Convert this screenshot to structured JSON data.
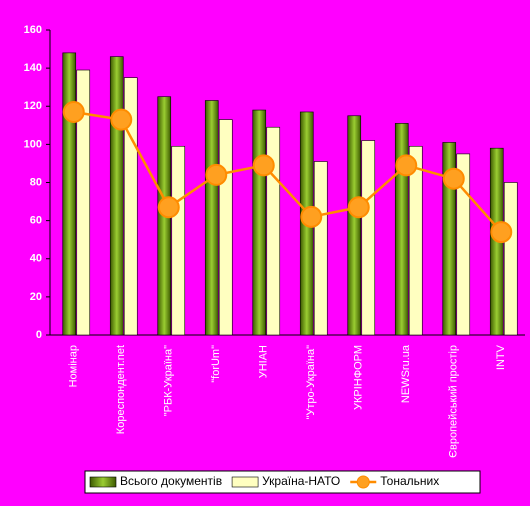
{
  "chart_data": {
    "type": "bar",
    "categories": [
      "Номінар",
      "Кореспондент.net",
      "\"РБК-Україна\"",
      "\"forUm\"",
      "УНІАН",
      "\"Утро-Україна\"",
      "УКРІНФОРМ",
      "NEWSru.ua",
      "Європейський простір",
      "INTV"
    ],
    "series": [
      {
        "name": "Всього документів",
        "color": "#6b8e1a",
        "type": "bar",
        "values": [
          148,
          146,
          125,
          123,
          118,
          117,
          115,
          111,
          101,
          98
        ]
      },
      {
        "name": "Україна-НАТО",
        "color": "#ffffc0",
        "type": "bar",
        "values": [
          139,
          135,
          99,
          113,
          109,
          91,
          102,
          99,
          95,
          80
        ]
      },
      {
        "name": "Тональних",
        "color": "#ff8c00",
        "type": "line",
        "values": [
          117,
          113,
          67,
          84,
          89,
          62,
          67,
          89,
          82,
          54
        ]
      }
    ],
    "ylim": [
      0,
      160
    ],
    "yticks": [
      0,
      20,
      40,
      60,
      80,
      100,
      120,
      140,
      160
    ],
    "legend": "bottom"
  }
}
